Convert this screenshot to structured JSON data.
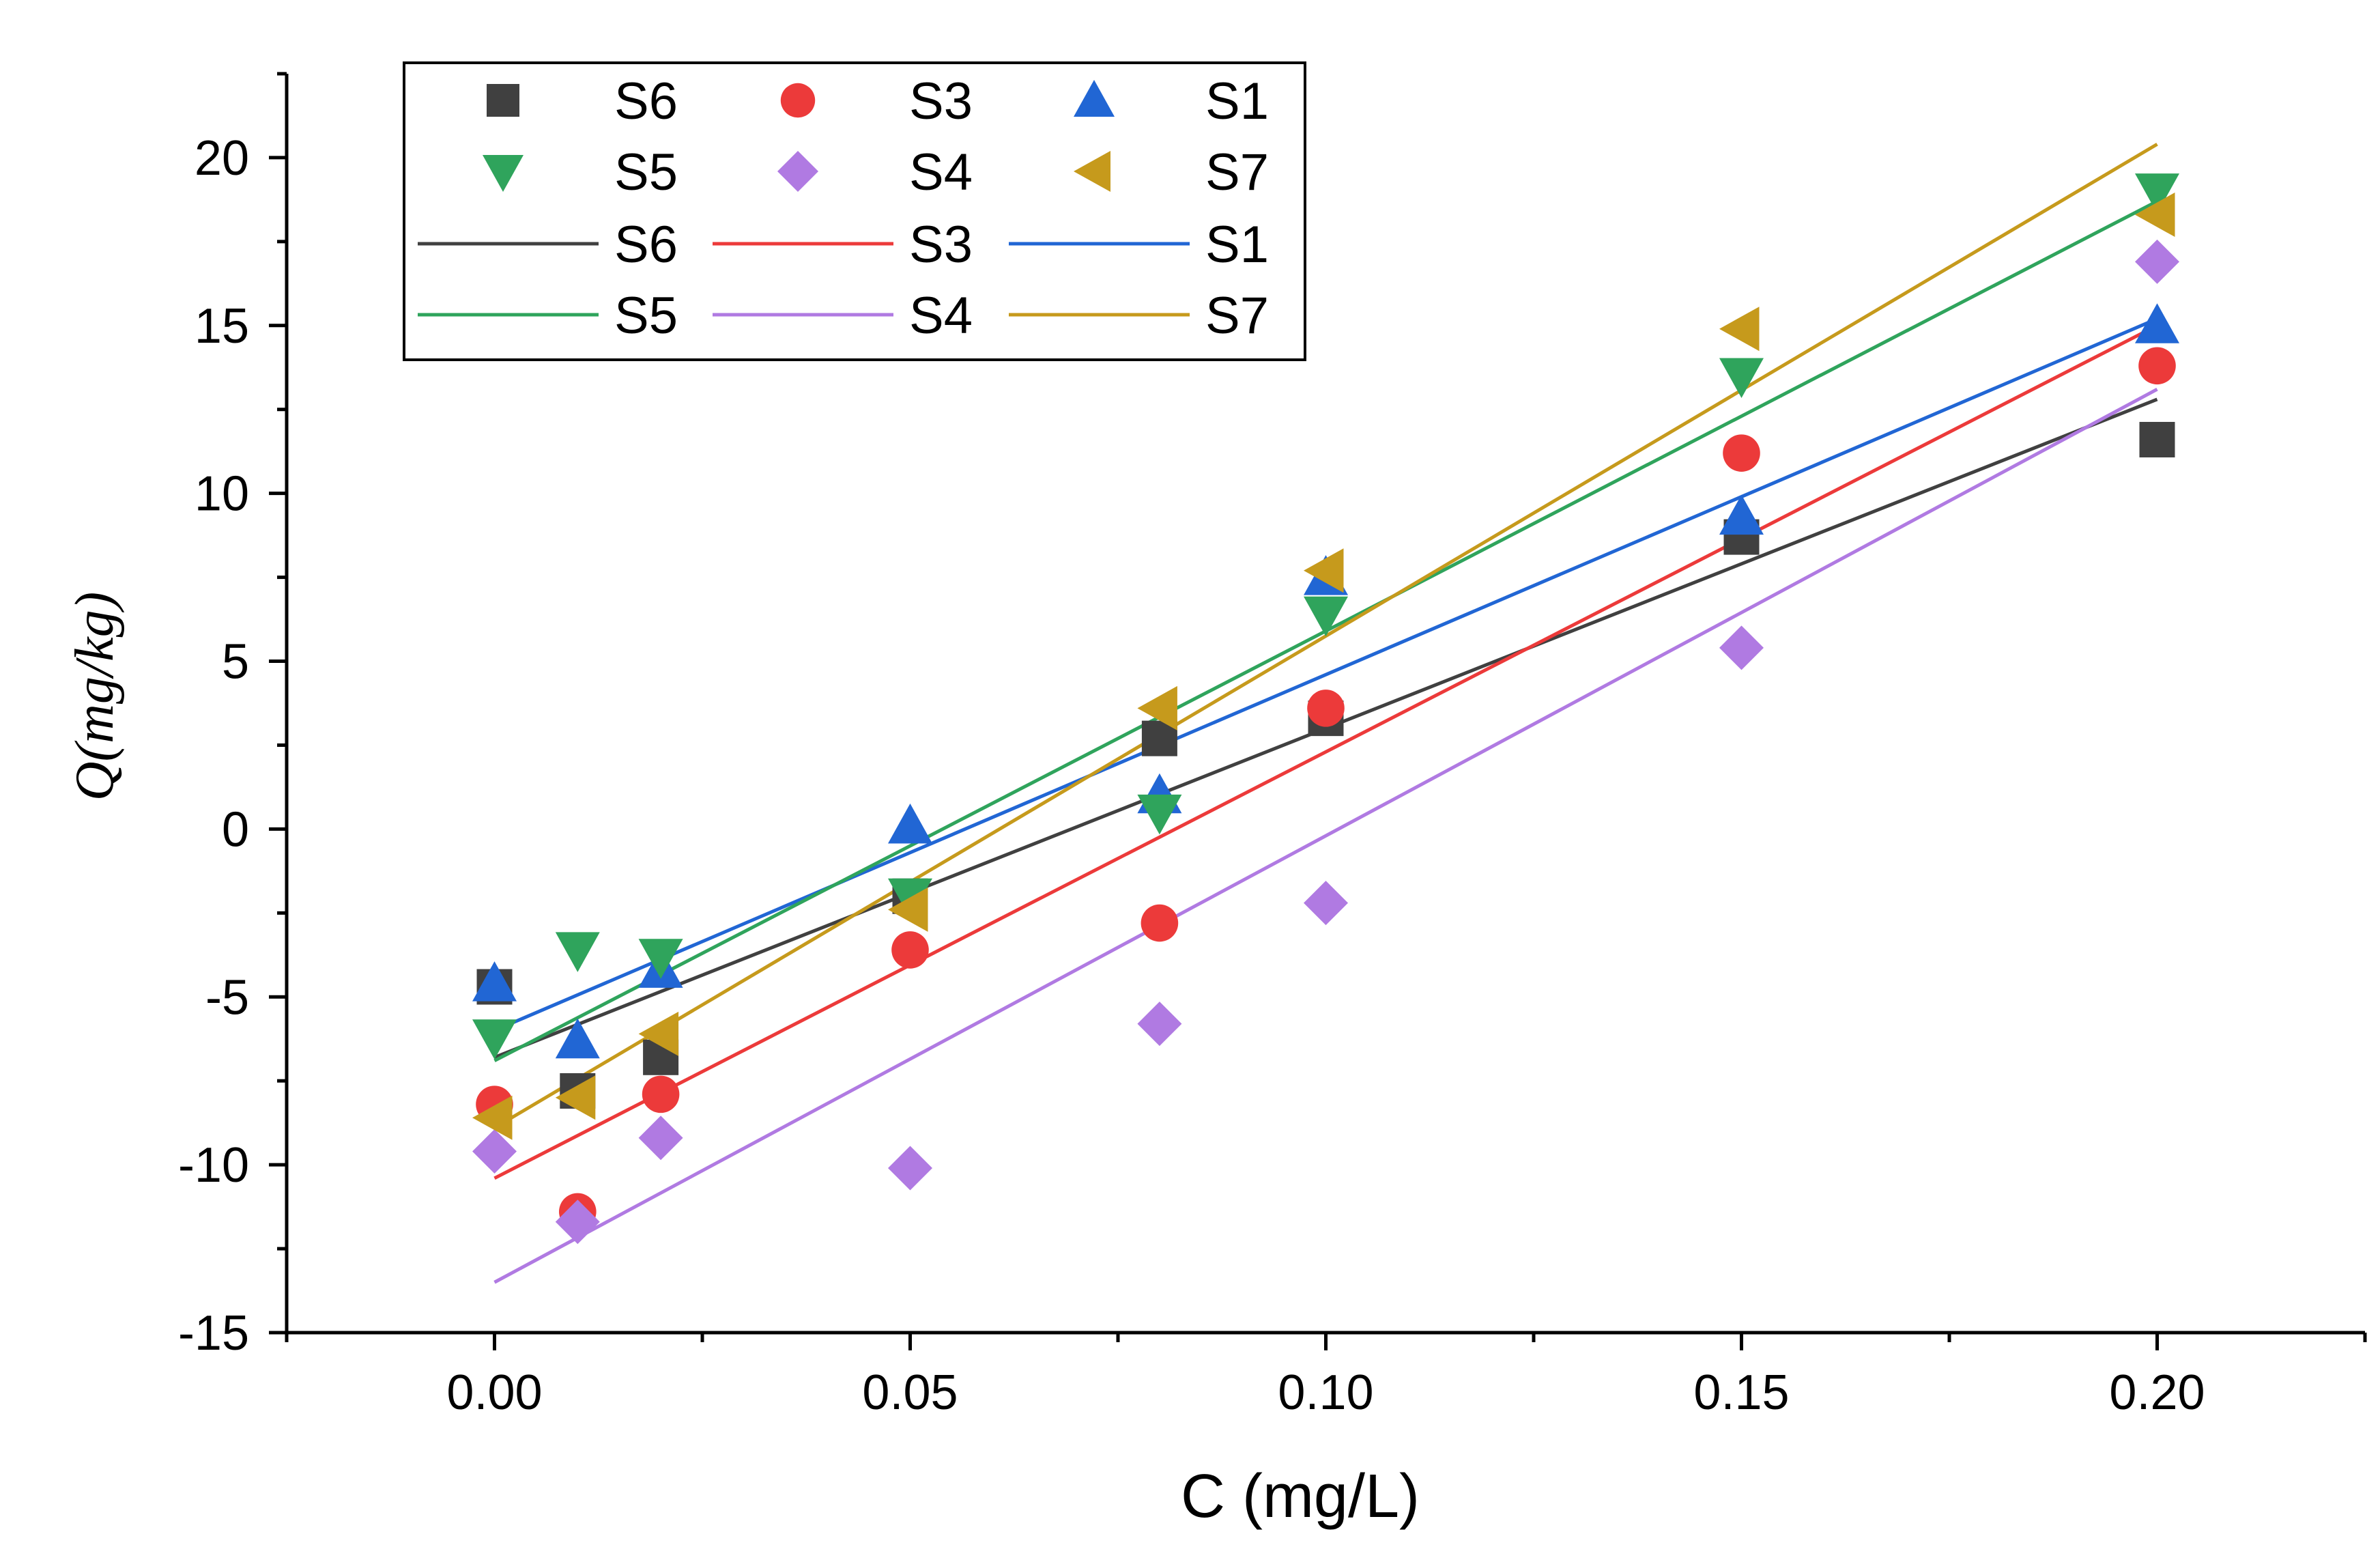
{
  "chart_data": {
    "type": "scatter",
    "title": "",
    "xlabel": "C (mg/L)",
    "ylabel": "Q(mg/kg)",
    "xlim": [
      -0.025,
      0.225
    ],
    "ylim": [
      -15,
      22.5
    ],
    "xticks": [
      0.0,
      0.05,
      0.1,
      0.15,
      0.2
    ],
    "xtick_labels": [
      "0.00",
      "0.05",
      "0.10",
      "0.15",
      "0.20"
    ],
    "yticks": [
      -15,
      -10,
      -5,
      0,
      5,
      10,
      15,
      20
    ],
    "ytick_labels": [
      "-15",
      "-10",
      "-5",
      "0",
      "5",
      "10",
      "15",
      "20"
    ],
    "grid": false,
    "legend_position": "top-left",
    "x": [
      0.0,
      0.01,
      0.02,
      0.05,
      0.08,
      0.1,
      0.15,
      0.2
    ],
    "series": [
      {
        "name": "S6",
        "marker": "square",
        "color": "#404040",
        "values": [
          -4.7,
          -7.8,
          -6.8,
          -2.0,
          2.7,
          3.3,
          8.7,
          11.6
        ],
        "fit": [
          -6.8,
          12.8
        ]
      },
      {
        "name": "S3",
        "marker": "circle",
        "color": "#ec3a3a",
        "values": [
          -8.2,
          -11.4,
          -7.9,
          -3.6,
          -2.8,
          3.6,
          11.2,
          13.8
        ],
        "fit": [
          -10.4,
          15.0
        ]
      },
      {
        "name": "S1",
        "marker": "triangle-up",
        "color": "#2166d4",
        "values": [
          -4.6,
          -6.3,
          -4.2,
          0.1,
          1.0,
          7.5,
          9.3,
          15.0
        ],
        "fit": [
          -6.0,
          15.2
        ]
      },
      {
        "name": "S5",
        "marker": "triangle-down",
        "color": "#2fa45c",
        "values": [
          -6.2,
          -3.6,
          -3.8,
          -2.0,
          0.5,
          6.4,
          13.5,
          19.0
        ],
        "fit": [
          -6.9,
          18.7
        ]
      },
      {
        "name": "S4",
        "marker": "diamond",
        "color": "#b07ae2",
        "values": [
          -9.6,
          -11.7,
          -9.2,
          -10.1,
          -5.8,
          -2.2,
          5.4,
          16.9
        ],
        "fit": [
          -13.5,
          13.1
        ]
      },
      {
        "name": "S7",
        "marker": "triangle-left",
        "color": "#c69a1c",
        "values": [
          -8.6,
          -8.0,
          -6.1,
          -2.4,
          3.6,
          7.7,
          14.9,
          18.3
        ],
        "fit": [
          -8.9,
          20.4
        ]
      }
    ],
    "fit_x": [
      0.0,
      0.2
    ]
  }
}
